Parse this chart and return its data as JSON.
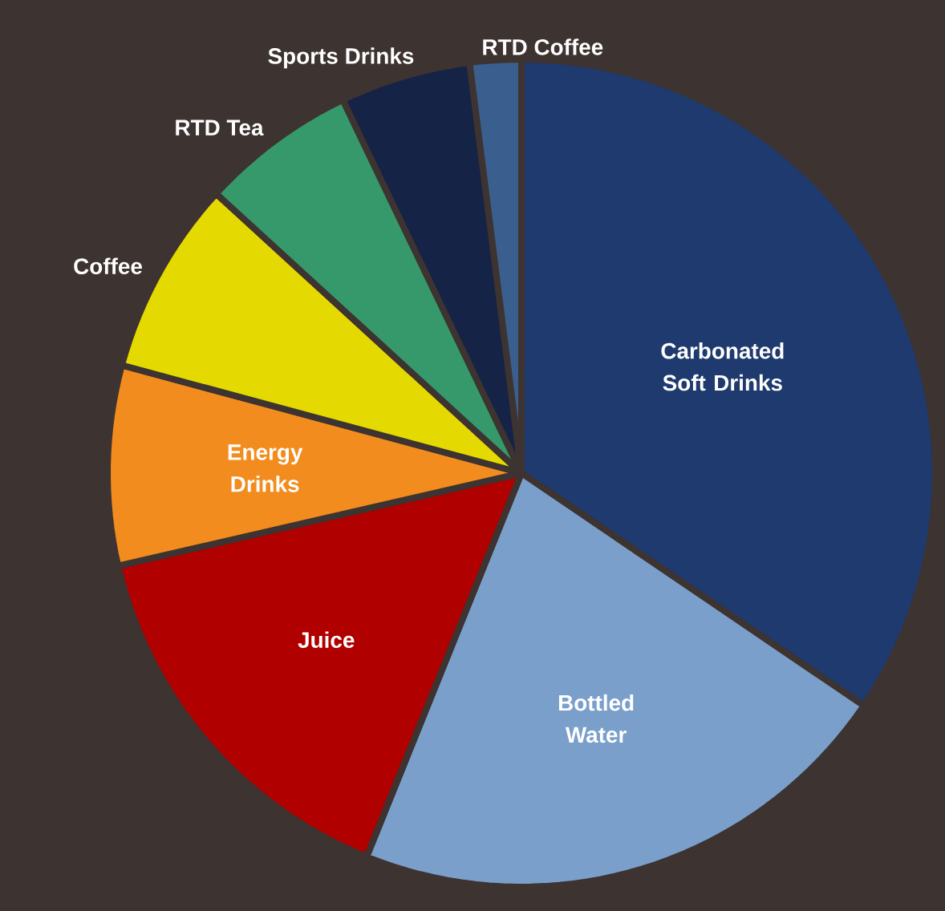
{
  "chart_data": {
    "type": "pie",
    "categories": [
      "Carbonated Soft Drinks",
      "Bottled Water",
      "Juice",
      "Energy Drinks",
      "Coffee",
      "RTD Tea",
      "Sports Drinks",
      "RTD Coffee"
    ],
    "values": [
      34.5,
      21.6,
      15.3,
      7.8,
      7.6,
      6.1,
      5.1,
      2.0
    ],
    "colors": [
      "#1f3a6e",
      "#7a9fcb",
      "#b00000",
      "#f28c1e",
      "#e4d900",
      "#35996b",
      "#152346",
      "#3a5f8f"
    ]
  }
}
